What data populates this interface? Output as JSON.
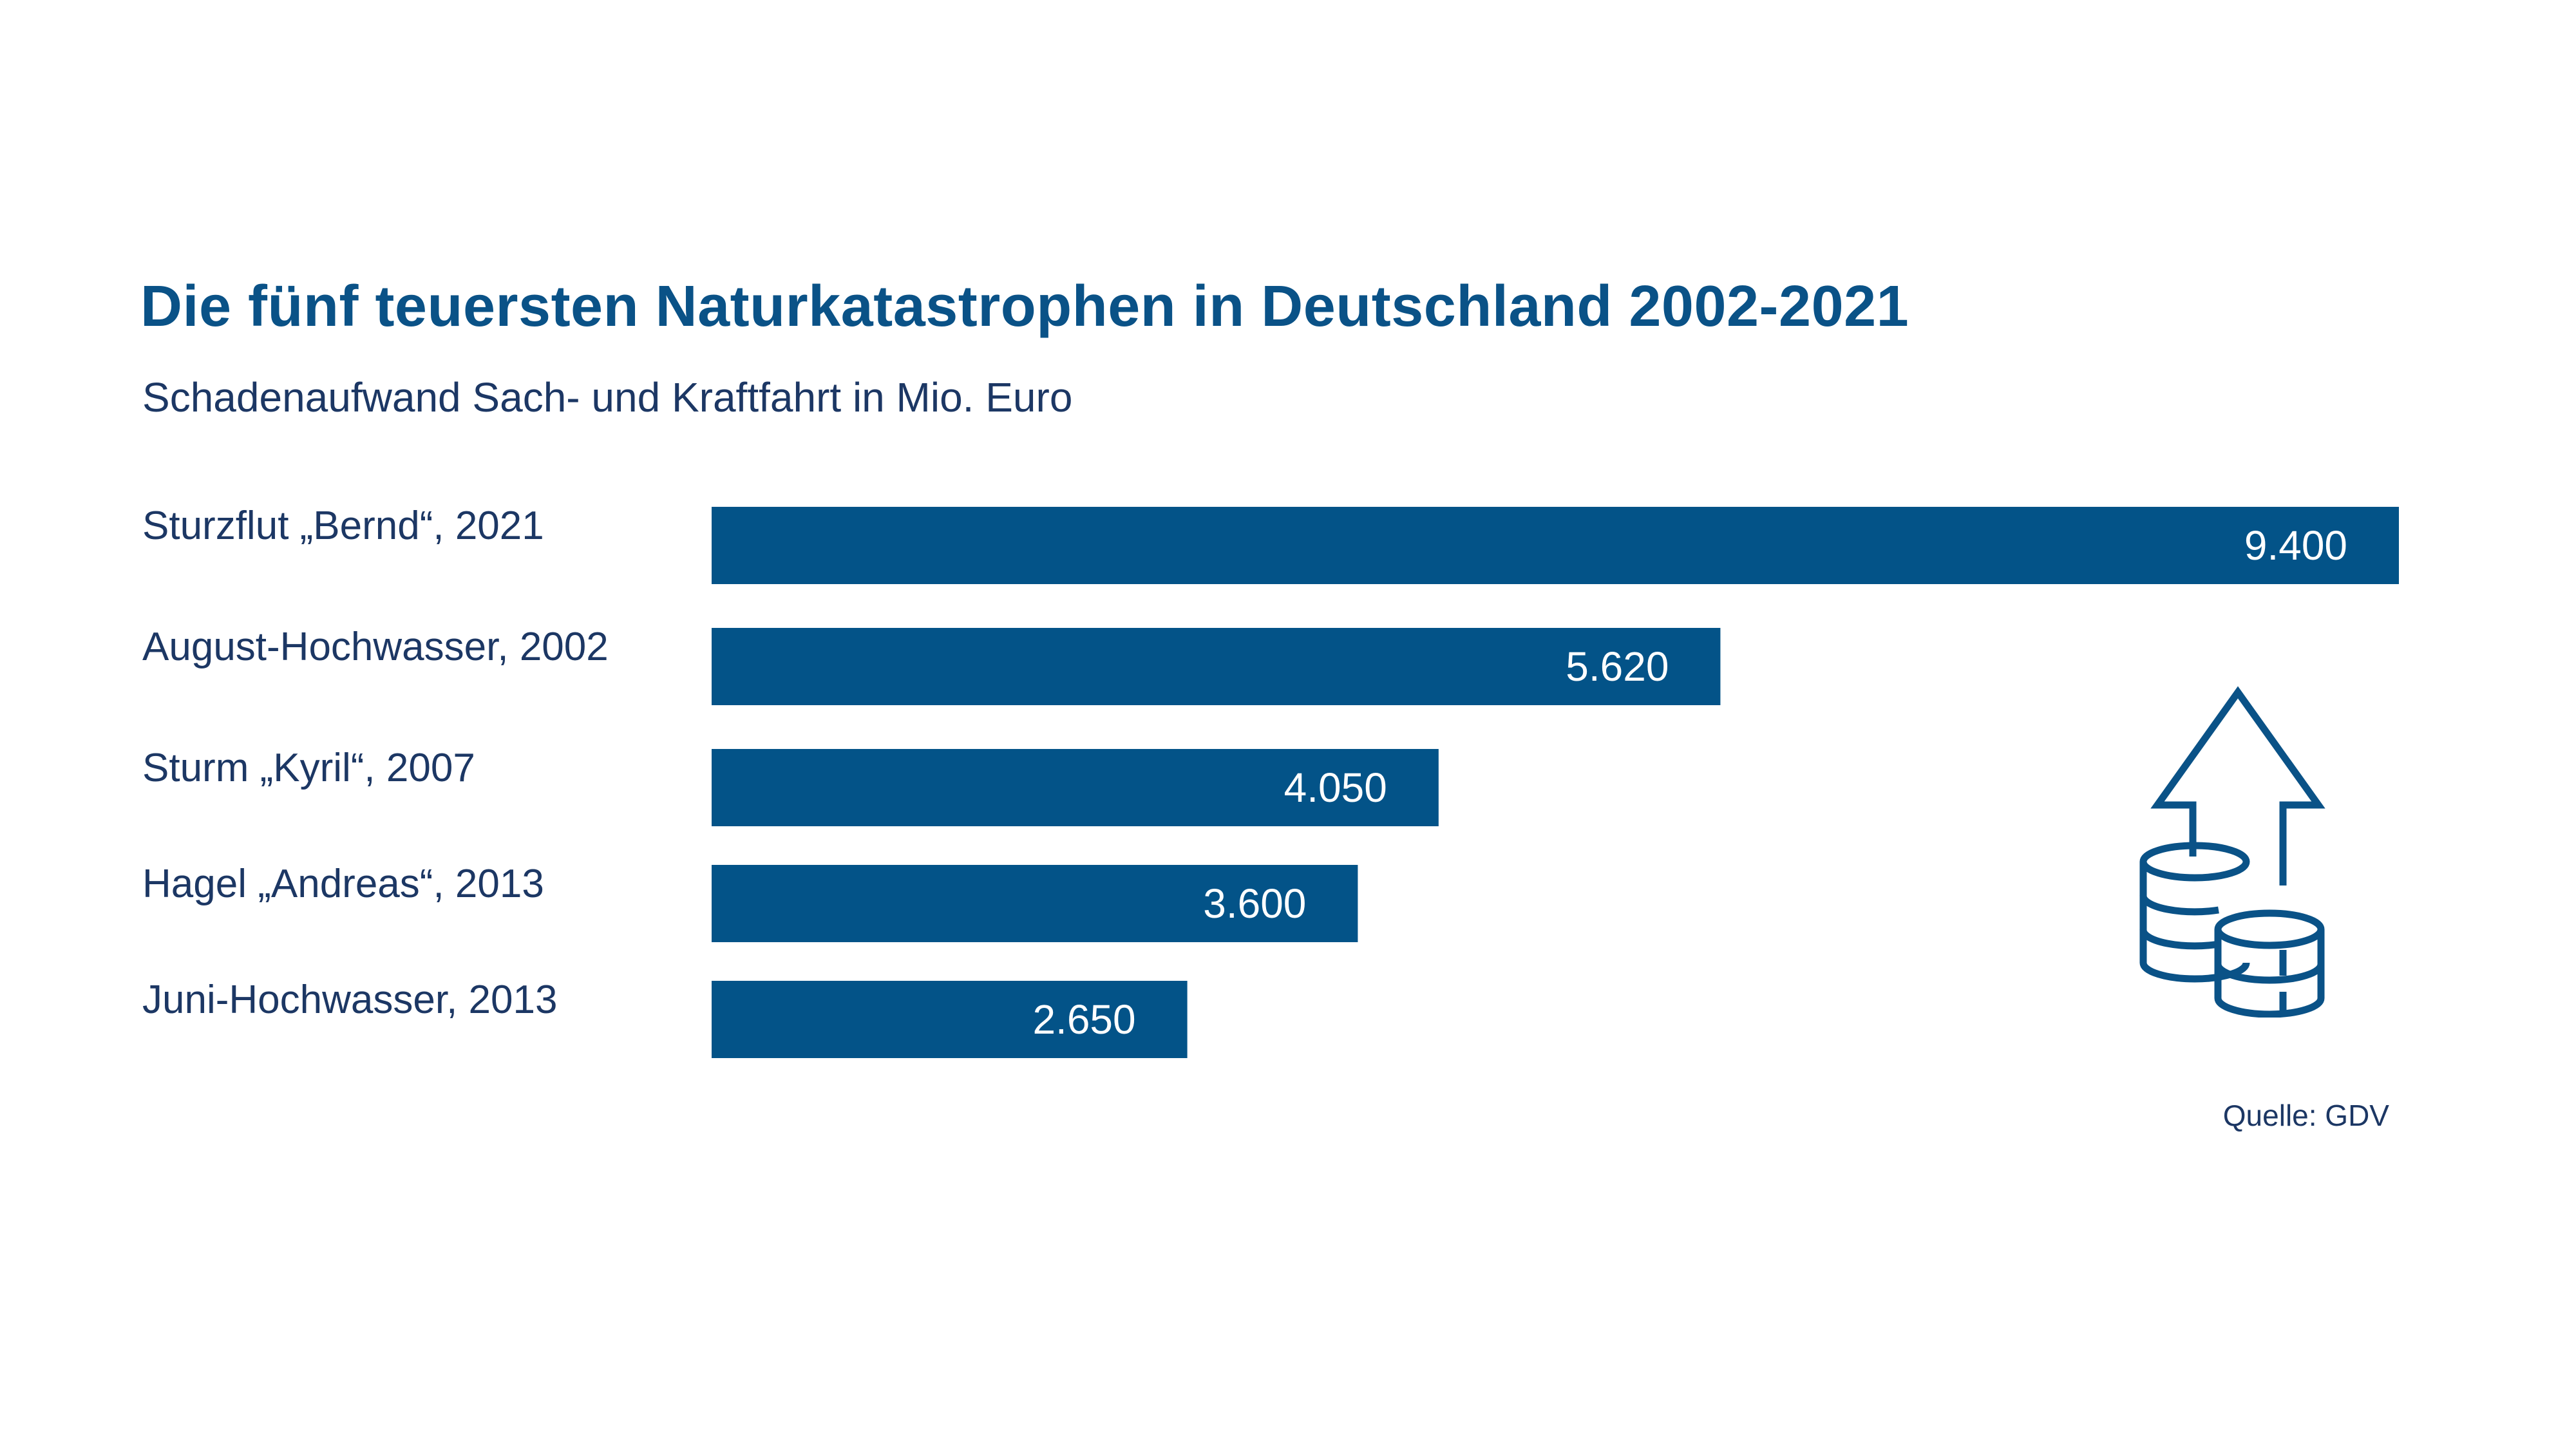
{
  "chart_data": {
    "type": "bar",
    "orientation": "horizontal",
    "title": "Die fünf teuersten Naturkatastrophen in Deutschland 2002-2021",
    "subtitle": "Schadenaufwand Sach- und Kraftfahrt in Mio. Euro",
    "categories": [
      "Sturzflut „Bernd“, 2021",
      "August-Hochwasser, 2002",
      "Sturm „Kyril“, 2007",
      "Hagel „Andreas“, 2013",
      "Juni-Hochwasser, 2013"
    ],
    "values": [
      9400,
      5620,
      4050,
      3600,
      2650
    ],
    "value_labels": [
      "9.400",
      "5.620",
      "4.050",
      "3.600",
      "2.650"
    ],
    "xlim": [
      0,
      9400
    ],
    "grid": false,
    "bar_color": "#035388",
    "source": "Quelle: GDV"
  },
  "colors": {
    "title": "#0a5287",
    "text": "#1c3764",
    "bar": "#035388",
    "icon": "#0a5287"
  },
  "icon": {
    "name": "coins-rising-arrow-icon"
  }
}
